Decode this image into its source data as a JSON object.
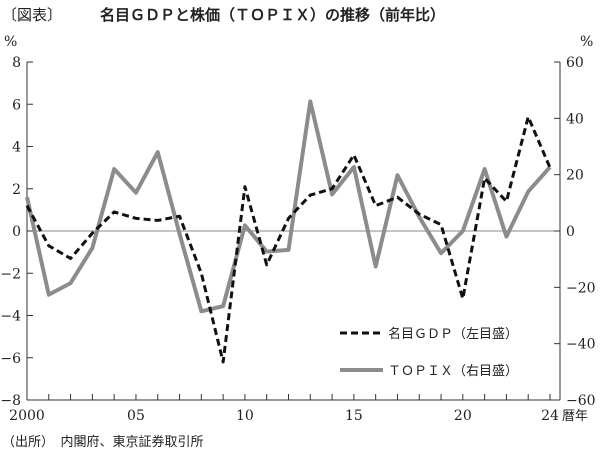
{
  "chart_data": {
    "type": "line",
    "title_tag": "〔図表〕",
    "title": "名目ＧＤＰと株価（ＴＯＰＩＸ）の推移（前年比）",
    "left_unit": "%",
    "right_unit": "%",
    "xlabel": "暦年",
    "source": "（出所）　内閣府、東京証券取引所",
    "x": [
      2000,
      2001,
      2002,
      2003,
      2004,
      2005,
      2006,
      2007,
      2008,
      2009,
      2010,
      2011,
      2012,
      2013,
      2014,
      2015,
      2016,
      2017,
      2018,
      2019,
      2020,
      2021,
      2022,
      2023,
      2024
    ],
    "xlim": [
      2000,
      2024
    ],
    "x_ticks": [
      {
        "value": 2000,
        "label": "2000"
      },
      {
        "value": 2005,
        "label": "05"
      },
      {
        "value": 2010,
        "label": "10"
      },
      {
        "value": 2015,
        "label": "15"
      },
      {
        "value": 2020,
        "label": "20"
      },
      {
        "value": 2024,
        "label": "24"
      }
    ],
    "ylim_left": [
      -8,
      8
    ],
    "yticks_left": [
      -8,
      -6,
      -4,
      -2,
      0,
      2,
      4,
      6,
      8
    ],
    "ylim_right": [
      -60,
      60
    ],
    "yticks_right": [
      -60,
      -40,
      -20,
      0,
      20,
      40,
      60
    ],
    "series": [
      {
        "name": "名目ＧＤＰ（左目盛）",
        "axis": "left",
        "style": "dashed",
        "color": "#111111",
        "values": [
          1.2,
          -0.7,
          -1.3,
          -0.1,
          0.9,
          0.6,
          0.5,
          0.7,
          -2.0,
          -6.2,
          2.1,
          -1.6,
          0.6,
          1.7,
          2.0,
          3.6,
          1.2,
          1.6,
          0.8,
          0.3,
          -3.2,
          2.5,
          1.4,
          5.4,
          3.0
        ]
      },
      {
        "name": "ＴＯＰＩＸ（右目盛）",
        "axis": "right",
        "style": "solid",
        "color": "#8c8c8c",
        "values": [
          12,
          -22.6,
          -18.5,
          -6,
          22,
          13.6,
          28,
          -1,
          -28.5,
          -26.7,
          2,
          -7.3,
          -6.7,
          46,
          13,
          22.7,
          -12.6,
          19.8,
          5,
          -7.9,
          0,
          22,
          -2,
          14,
          22.7
        ]
      }
    ],
    "legend": "bottom-right",
    "grid": false
  }
}
